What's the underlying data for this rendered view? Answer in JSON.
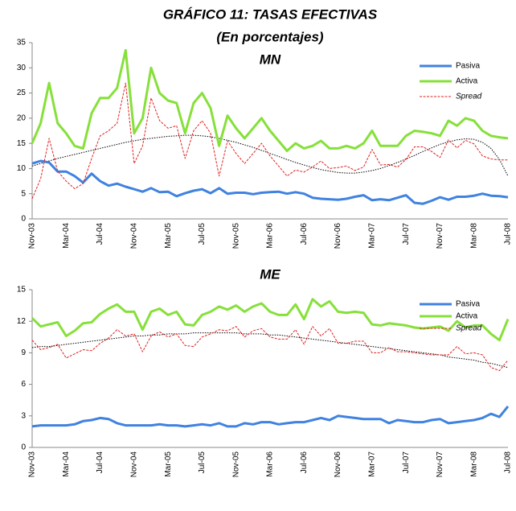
{
  "header": {
    "title": "GRÁFICO 11: TASAS EFECTIVAS",
    "subtitle": "(En porcentajes)"
  },
  "chart_data": [
    {
      "type": "line",
      "title": "MN",
      "legend": "upper right",
      "categories": [
        "Nov-03",
        null,
        null,
        null,
        "Mar-04",
        null,
        null,
        null,
        "Jul-04",
        null,
        null,
        null,
        "Nov-04",
        null,
        null,
        null,
        "Mar-05",
        null,
        null,
        null,
        "Jul-05",
        null,
        null,
        null,
        "Nov-05",
        null,
        null,
        null,
        "Mar-06",
        null,
        null,
        null,
        "Jul-06",
        null,
        null,
        null,
        "Nov-06",
        null,
        null,
        null,
        "Mar-07",
        null,
        null,
        null,
        "Jul-07",
        null,
        null,
        null,
        "Nov-07",
        null,
        null,
        null,
        "Mar-08",
        null,
        null,
        null,
        "Jul-08"
      ],
      "ylim": [
        0,
        35
      ],
      "yticks": [
        0,
        5,
        10,
        15,
        20,
        25,
        30,
        35
      ],
      "series": [
        {
          "name": "Pasiva",
          "color": "#3f82e0",
          "values": [
            11,
            11.5,
            11.2,
            9.4,
            9.4,
            8.5,
            7.2,
            9.0,
            7.5,
            6.6,
            7.0,
            6.4,
            5.9,
            5.4,
            6.1,
            5.3,
            5.4,
            4.5,
            5.1,
            5.6,
            5.9,
            5.1,
            6.1,
            5.0,
            5.2,
            5.2,
            4.9,
            5.2,
            5.3,
            5.4,
            5.0,
            5.3,
            5.0,
            4.2,
            4.0,
            3.9,
            3.8,
            4.0,
            4.4,
            4.7,
            3.7,
            3.9,
            3.7,
            4.2,
            4.7,
            3.2,
            3.0,
            3.6,
            4.3,
            3.8,
            4.4,
            4.4,
            4.6,
            5.0,
            4.6,
            4.5,
            4.3
          ]
        },
        {
          "name": "Activa",
          "color": "#86e03a",
          "values": [
            15,
            19,
            27,
            19,
            17,
            14.5,
            14,
            21,
            24,
            24,
            26,
            33.5,
            17,
            20,
            30,
            25,
            23.5,
            23,
            17,
            23,
            25,
            22,
            14.5,
            20.5,
            18,
            16,
            18,
            20,
            17.5,
            15.5,
            13.5,
            15,
            14,
            14.5,
            15.5,
            14,
            14,
            14.5,
            14,
            15,
            17.5,
            14.5,
            14.5,
            14.5,
            16.5,
            17.5,
            17.3,
            17,
            16.5,
            19.5,
            18.5,
            20,
            19.5,
            17.5,
            16.5,
            16.2,
            16
          ]
        },
        {
          "name": "Spread",
          "color": "#e02020",
          "italic": true,
          "values": [
            4,
            8,
            16,
            9.5,
            7.5,
            6,
            7,
            12,
            16.5,
            17.5,
            19,
            27,
            11,
            14.5,
            24,
            19.5,
            18,
            18.5,
            12,
            17.5,
            19.5,
            17,
            8.5,
            15.5,
            13,
            11,
            13,
            15,
            12.5,
            10.5,
            8.5,
            9.7,
            9.3,
            10.3,
            11.5,
            10,
            10.2,
            10.5,
            9.6,
            10.3,
            13.8,
            10.7,
            10.8,
            10.3,
            11.8,
            14.3,
            14.3,
            13.4,
            12.2,
            15.7,
            14.1,
            15.6,
            14.9,
            12.5,
            11.9,
            11.7,
            11.7
          ]
        }
      ],
      "trend": {
        "color": "#000000",
        "values": [
          10.5,
          11,
          11.5,
          12,
          12.4,
          12.8,
          13.2,
          13.6,
          14,
          14.4,
          14.8,
          15.2,
          15.5,
          15.8,
          16,
          16.2,
          16.4,
          16.5,
          16.6,
          16.6,
          16.5,
          16.3,
          16,
          15.6,
          15.2,
          14.7,
          14.2,
          13.6,
          13,
          12.4,
          11.8,
          11.2,
          10.7,
          10.2,
          9.8,
          9.5,
          9.2,
          9.1,
          9.1,
          9.3,
          9.6,
          10,
          10.6,
          11.2,
          11.9,
          12.6,
          13.4,
          14.1,
          14.8,
          15.3,
          15.7,
          15.9,
          15.8,
          15.2,
          14,
          11.8,
          8.5
        ]
      }
    },
    {
      "type": "line",
      "title": "ME",
      "legend": "upper right",
      "categories": [
        "Nov-03",
        null,
        null,
        null,
        "Mar-04",
        null,
        null,
        null,
        "Jul-04",
        null,
        null,
        null,
        "Nov-04",
        null,
        null,
        null,
        "Mar-05",
        null,
        null,
        null,
        "Jul-05",
        null,
        null,
        null,
        "Nov-05",
        null,
        null,
        null,
        "Mar-06",
        null,
        null,
        null,
        "Jul-06",
        null,
        null,
        null,
        "Nov-06",
        null,
        null,
        null,
        "Mar-07",
        null,
        null,
        null,
        "Jul-07",
        null,
        null,
        null,
        "Nov-07",
        null,
        null,
        null,
        "Mar-08",
        null,
        null,
        null,
        "Jul-08"
      ],
      "ylim": [
        0,
        15
      ],
      "yticks": [
        0,
        3,
        6,
        9,
        12,
        15
      ],
      "series": [
        {
          "name": "Pasiva",
          "color": "#3f82e0",
          "values": [
            2.0,
            2.1,
            2.1,
            2.1,
            2.1,
            2.2,
            2.5,
            2.6,
            2.8,
            2.7,
            2.3,
            2.1,
            2.1,
            2.1,
            2.1,
            2.2,
            2.1,
            2.1,
            2.0,
            2.1,
            2.2,
            2.1,
            2.3,
            2.0,
            2.0,
            2.3,
            2.2,
            2.4,
            2.4,
            2.2,
            2.3,
            2.4,
            2.4,
            2.6,
            2.8,
            2.6,
            3.0,
            2.9,
            2.8,
            2.7,
            2.7,
            2.7,
            2.3,
            2.6,
            2.5,
            2.4,
            2.4,
            2.6,
            2.7,
            2.3,
            2.4,
            2.5,
            2.6,
            2.8,
            3.2,
            2.9,
            3.9
          ]
        },
        {
          "name": "Activa",
          "color": "#86e03a",
          "values": [
            12.3,
            11.5,
            11.7,
            11.9,
            10.6,
            11.1,
            11.8,
            11.9,
            12.7,
            13.2,
            13.6,
            12.9,
            12.9,
            11.2,
            12.9,
            13.2,
            12.6,
            12.9,
            11.7,
            11.6,
            12.6,
            12.9,
            13.4,
            13.1,
            13.5,
            12.9,
            13.4,
            13.7,
            12.9,
            12.6,
            12.6,
            13.6,
            12.2,
            14.1,
            13.4,
            13.9,
            12.9,
            12.8,
            12.9,
            12.8,
            11.7,
            11.6,
            11.8,
            11.7,
            11.6,
            11.4,
            11.3,
            11.4,
            11.5,
            11.1,
            12.0,
            11.4,
            11.6,
            11.6,
            10.8,
            10.2,
            12.2
          ]
        },
        {
          "name": "Spread",
          "color": "#e02020",
          "italic": true,
          "values": [
            10.2,
            9.3,
            9.5,
            9.8,
            8.5,
            8.9,
            9.3,
            9.2,
            9.9,
            10.4,
            11.2,
            10.6,
            10.8,
            9.1,
            10.6,
            11.0,
            10.5,
            10.8,
            9.7,
            9.6,
            10.5,
            10.8,
            11.2,
            11.1,
            11.5,
            10.5,
            11.1,
            11.3,
            10.5,
            10.3,
            10.3,
            11.2,
            9.8,
            11.5,
            10.6,
            11.3,
            9.9,
            9.9,
            10.1,
            10.1,
            9.0,
            9.0,
            9.5,
            9.1,
            9.1,
            9.0,
            8.9,
            8.8,
            8.8,
            8.8,
            9.6,
            8.9,
            9.0,
            8.8,
            7.6,
            7.3,
            8.3
          ]
        }
      ],
      "trend": {
        "color": "#000000",
        "values": [
          9.5,
          9.6,
          9.6,
          9.7,
          9.8,
          9.9,
          10.0,
          10.1,
          10.2,
          10.3,
          10.4,
          10.5,
          10.6,
          10.6,
          10.7,
          10.7,
          10.8,
          10.8,
          10.8,
          10.9,
          10.9,
          10.9,
          10.9,
          10.9,
          10.9,
          10.8,
          10.8,
          10.8,
          10.7,
          10.7,
          10.6,
          10.5,
          10.4,
          10.3,
          10.2,
          10.1,
          10.0,
          9.9,
          9.8,
          9.7,
          9.6,
          9.5,
          9.4,
          9.3,
          9.2,
          9.1,
          9.0,
          8.9,
          8.8,
          8.6,
          8.5,
          8.4,
          8.3,
          8.1,
          8.0,
          7.8,
          7.6
        ]
      }
    }
  ]
}
